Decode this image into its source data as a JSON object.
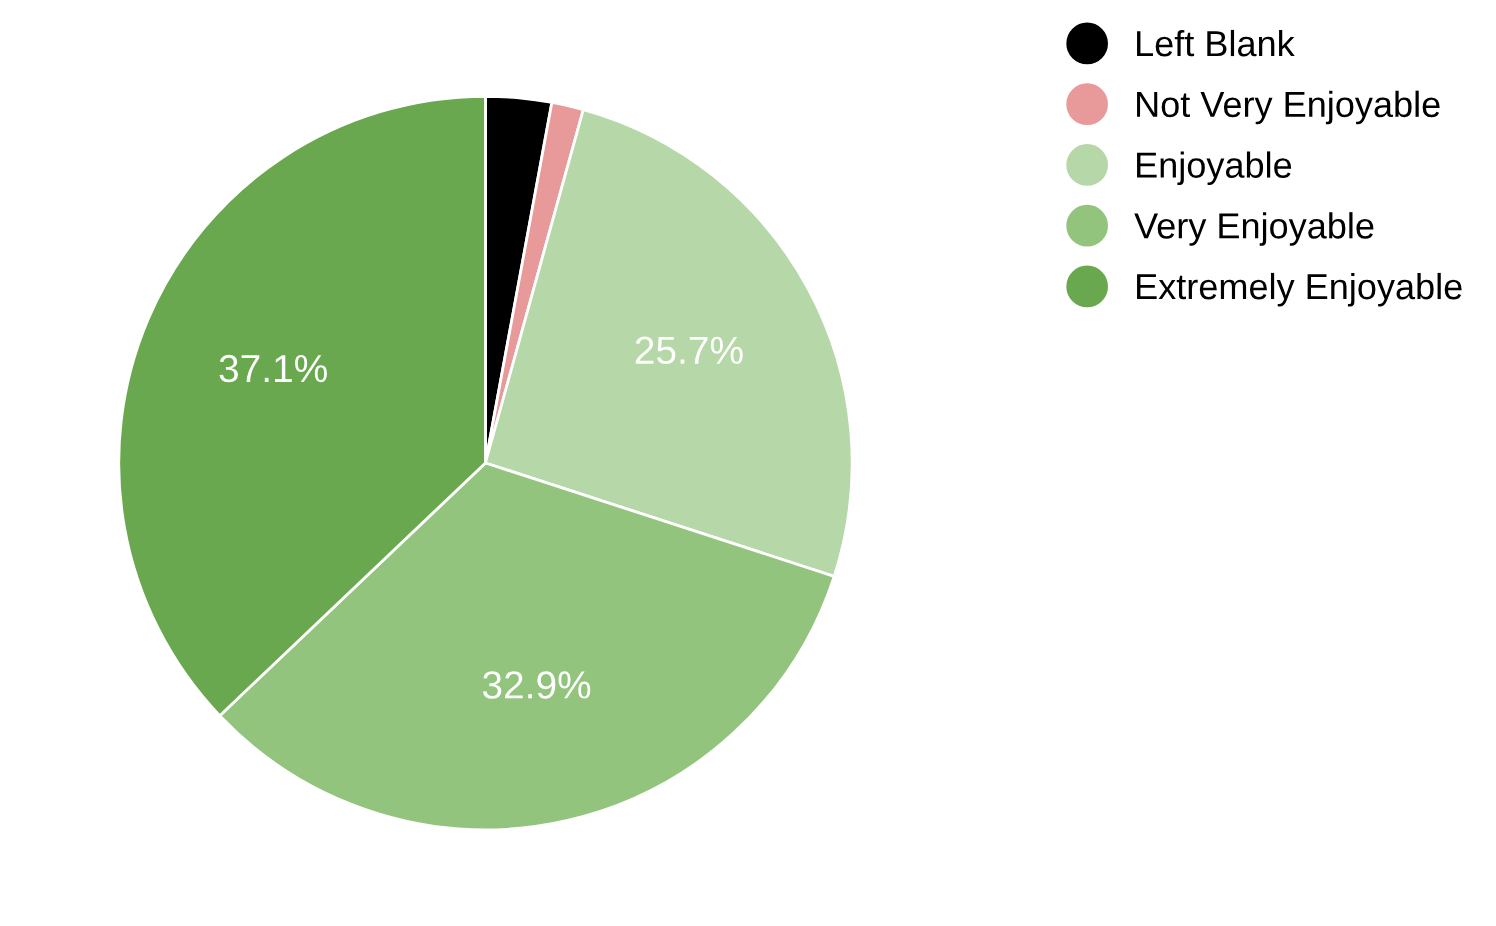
{
  "chart_data": {
    "type": "pie",
    "categories": [
      "Left Blank",
      "Not Very Enjoyable",
      "Enjoyable",
      "Very Enjoyable",
      "Extremely Enjoyable"
    ],
    "values": [
      2.9,
      1.4,
      25.7,
      32.9,
      37.1
    ],
    "colors": [
      "#000000",
      "#e89a9a",
      "#b6d7a8",
      "#93c47d",
      "#6aa84f"
    ],
    "value_labels": [
      null,
      null,
      "25.7%",
      "32.9%",
      "37.1%"
    ],
    "legend": "top right"
  }
}
